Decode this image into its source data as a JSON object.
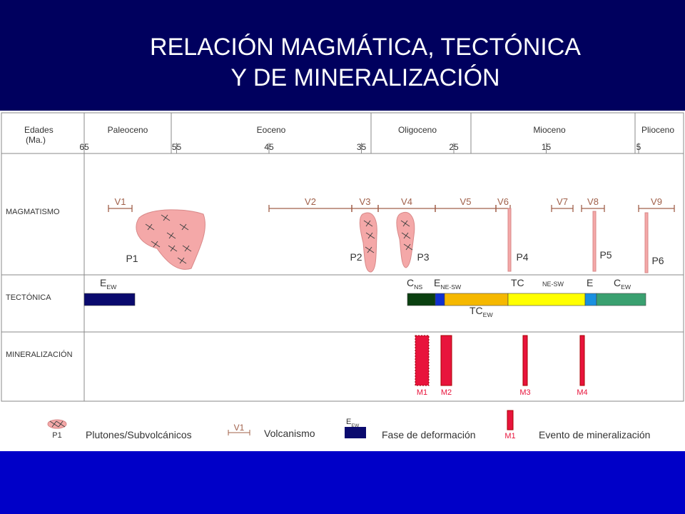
{
  "header": {
    "title": [
      "RELACIÓN MAGMÁTICA, TECTÓNICA",
      "Y DE MINERALIZACIÓN"
    ]
  },
  "table": {
    "age_label": [
      "Edades",
      "(Ma.)"
    ],
    "epochs": [
      "Paleoceno",
      "Eoceno",
      "Oligoceno",
      "Mioceno",
      "Plioceno"
    ],
    "ages": [
      65,
      55,
      45,
      35,
      25,
      15,
      5
    ],
    "rows": [
      "MAGMATISMO",
      "TECTÓNICA",
      "MINERALIZACIÓN"
    ]
  },
  "magmatism": {
    "volcanics": [
      "V1",
      "V2",
      "V3",
      "V4",
      "V5",
      "V6",
      "V7",
      "V8",
      "V9"
    ],
    "plutons": [
      "P1",
      "P2",
      "P3",
      "P4",
      "P5",
      "P6"
    ]
  },
  "tectonics": {
    "labels": [
      {
        "main": "E",
        "sub": "EW"
      },
      {
        "main": "C",
        "sub": "NS"
      },
      {
        "main": "E",
        "sub": "NE-SW"
      },
      {
        "main": "TC"
      },
      {
        "main": "NE-SW"
      },
      {
        "main": "E"
      },
      {
        "main": "C",
        "sub": "EW"
      },
      {
        "main": "TC",
        "sub": "EW"
      }
    ]
  },
  "mineralization": {
    "events": [
      "M1",
      "M2",
      "M3",
      "M4"
    ]
  },
  "legend": {
    "items": [
      {
        "icon": "P1",
        "label": "Plutones/Subvolcánicos"
      },
      {
        "icon": "V1",
        "label": "Volcanismo"
      },
      {
        "icon": {
          "main": "E",
          "sub": "EW"
        },
        "label": "Fase de deformación"
      },
      {
        "icon": "M1",
        "label": "Evento de mineralización"
      }
    ]
  }
}
